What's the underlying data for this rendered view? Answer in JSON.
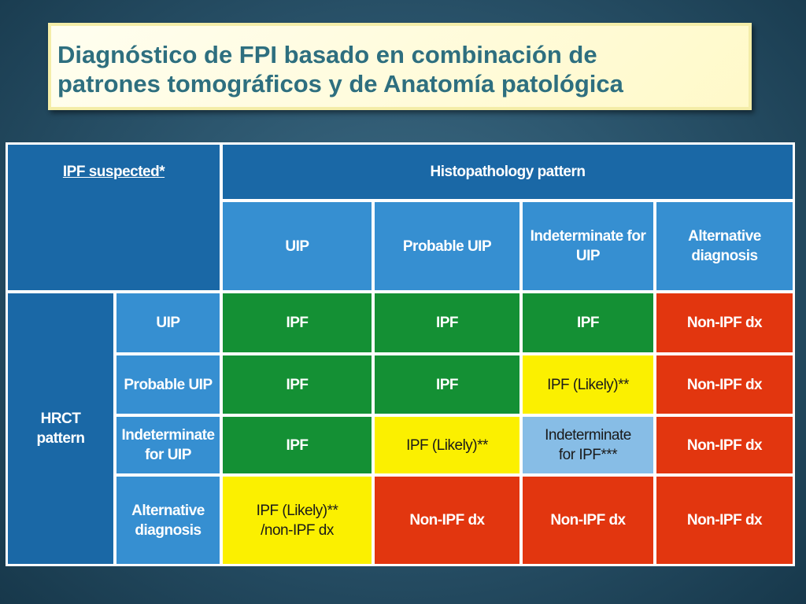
{
  "slide": {
    "title_line1": "Diagnóstico de FPI basado en combinación de",
    "title_line2": "patrones tomográficos y de Anatomía patológica"
  },
  "table": {
    "corner_label": "IPF suspected*",
    "histo_header": "Histopathology pattern",
    "hrct_header": {
      "line1": "HRCT",
      "line2": "pattern"
    },
    "columns": [
      {
        "line1": "UIP",
        "line2": ""
      },
      {
        "line1": "Probable UIP",
        "line2": ""
      },
      {
        "line1": "Indeterminate for",
        "line2": "UIP"
      },
      {
        "line1": "Alternative",
        "line2": "diagnosis"
      }
    ],
    "rows": [
      {
        "label": {
          "line1": "UIP",
          "line2": ""
        },
        "cells": [
          {
            "line1": "IPF",
            "line2": "",
            "color": "#149034"
          },
          {
            "line1": "IPF",
            "line2": "",
            "color": "#149034"
          },
          {
            "line1": "IPF",
            "line2": "",
            "color": "#149034"
          },
          {
            "line1": "Non-IPF dx",
            "line2": "",
            "color": "#e2360f"
          }
        ]
      },
      {
        "label": {
          "line1": "Probable UIP",
          "line2": ""
        },
        "cells": [
          {
            "line1": "IPF",
            "line2": "",
            "color": "#149034"
          },
          {
            "line1": "IPF",
            "line2": "",
            "color": "#149034"
          },
          {
            "line1": "IPF (Likely)**",
            "line2": "",
            "color": "#fbf000"
          },
          {
            "line1": "Non-IPF dx",
            "line2": "",
            "color": "#e2360f"
          }
        ]
      },
      {
        "label": {
          "line1": "Indeterminate",
          "line2": "for UIP"
        },
        "cells": [
          {
            "line1": "IPF",
            "line2": "",
            "color": "#149034"
          },
          {
            "line1": "IPF (Likely)**",
            "line2": "",
            "color": "#fbf000"
          },
          {
            "line1": "Indeterminate",
            "line2": "for IPF***",
            "color": "#87bde6"
          },
          {
            "line1": "Non-IPF dx",
            "line2": "",
            "color": "#e2360f"
          }
        ]
      },
      {
        "label": {
          "line1": "Alternative",
          "line2": "diagnosis"
        },
        "cells": [
          {
            "line1": "IPF (Likely)**",
            "line2": "/non-IPF dx",
            "color": "#fbf000"
          },
          {
            "line1": "Non-IPF dx",
            "line2": "",
            "color": "#e2360f"
          },
          {
            "line1": "Non-IPF dx",
            "line2": "",
            "color": "#e2360f"
          },
          {
            "line1": "Non-IPF dx",
            "line2": "",
            "color": "#e2360f"
          }
        ]
      }
    ]
  }
}
